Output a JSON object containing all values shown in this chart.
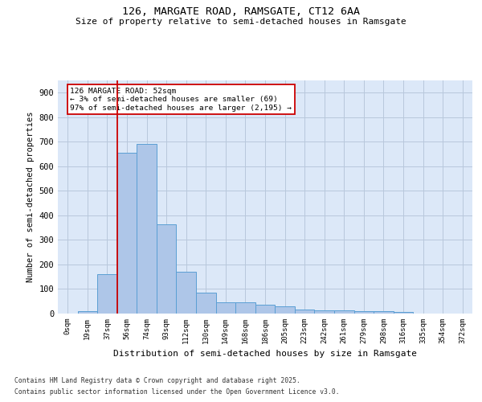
{
  "title1": "126, MARGATE ROAD, RAMSGATE, CT12 6AA",
  "title2": "Size of property relative to semi-detached houses in Ramsgate",
  "xlabel": "Distribution of semi-detached houses by size in Ramsgate",
  "ylabel": "Number of semi-detached properties",
  "categories": [
    "0sqm",
    "19sqm",
    "37sqm",
    "56sqm",
    "74sqm",
    "93sqm",
    "112sqm",
    "130sqm",
    "149sqm",
    "168sqm",
    "186sqm",
    "205sqm",
    "223sqm",
    "242sqm",
    "261sqm",
    "279sqm",
    "298sqm",
    "316sqm",
    "335sqm",
    "354sqm",
    "372sqm"
  ],
  "values": [
    0,
    10,
    160,
    655,
    690,
    365,
    170,
    85,
    47,
    47,
    35,
    30,
    15,
    13,
    13,
    10,
    10,
    5,
    0,
    0,
    0
  ],
  "bar_color": "#aec6e8",
  "bar_edge_color": "#5a9fd4",
  "vline_x_index": 3,
  "vline_color": "#cc0000",
  "annotation_text": "126 MARGATE ROAD: 52sqm\n← 3% of semi-detached houses are smaller (69)\n97% of semi-detached houses are larger (2,195) →",
  "box_edge_color": "#cc0000",
  "ylim": [
    0,
    950
  ],
  "yticks": [
    0,
    100,
    200,
    300,
    400,
    500,
    600,
    700,
    800,
    900
  ],
  "footer1": "Contains HM Land Registry data © Crown copyright and database right 2025.",
  "footer2": "Contains public sector information licensed under the Open Government Licence v3.0.",
  "bg_color": "#dce8f8",
  "grid_color": "#b8c8dc"
}
